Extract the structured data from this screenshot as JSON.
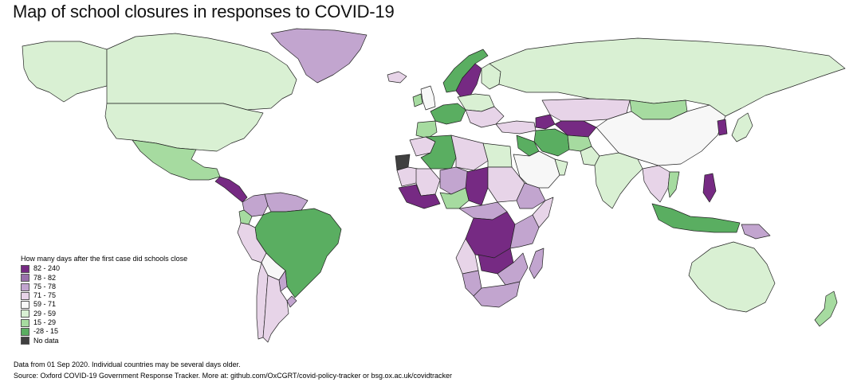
{
  "title": "Map of school closures in responses to COVID-19",
  "legend": {
    "title": "How many days after the first case did schools close",
    "items": [
      {
        "label": "82 - 240",
        "color": "#762a83"
      },
      {
        "label": "78 - 82",
        "color": "#9970ab"
      },
      {
        "label": "75 - 78",
        "color": "#c2a5cf"
      },
      {
        "label": "71 - 75",
        "color": "#e7d4e8"
      },
      {
        "label": "59 - 71",
        "color": "#f7f7f7"
      },
      {
        "label": "29 - 59",
        "color": "#d9f0d3"
      },
      {
        "label": "15 - 29",
        "color": "#a6dba0"
      },
      {
        "label": "-28 - 15",
        "color": "#5aae61"
      },
      {
        "label": "No data",
        "color": "#404040"
      }
    ]
  },
  "footnote": "Data from 01 Sep 2020. Individual countries may be several days older.",
  "source": "Source: Oxford COVID-19 Government Response Tracker. More at: github.com/OxCGRT/covid-policy-tracker or bsg.ox.ac.uk/covidtracker",
  "regions": [
    {
      "name": "Alaska",
      "class": "29 - 59"
    },
    {
      "name": "Canada",
      "class": "29 - 59"
    },
    {
      "name": "Greenland",
      "class": "75 - 78"
    },
    {
      "name": "United States",
      "class": "29 - 59"
    },
    {
      "name": "Mexico",
      "class": "15 - 29"
    },
    {
      "name": "Central America",
      "class": "82 - 240"
    },
    {
      "name": "Colombia",
      "class": "75 - 78"
    },
    {
      "name": "Venezuela",
      "class": "75 - 78"
    },
    {
      "name": "Ecuador",
      "class": "15 - 29"
    },
    {
      "name": "Peru",
      "class": "71 - 75"
    },
    {
      "name": "Bolivia",
      "class": "59 - 71"
    },
    {
      "name": "Brazil",
      "class": "-28 - 15"
    },
    {
      "name": "Paraguay",
      "class": "75 - 78"
    },
    {
      "name": "Uruguay",
      "class": "75 - 78"
    },
    {
      "name": "Chile",
      "class": "71 - 75"
    },
    {
      "name": "Argentina",
      "class": "71 - 75"
    },
    {
      "name": "Iceland",
      "class": "71 - 75"
    },
    {
      "name": "United Kingdom",
      "class": "59 - 71"
    },
    {
      "name": "Ireland",
      "class": "15 - 29"
    },
    {
      "name": "Norway",
      "class": "-28 - 15"
    },
    {
      "name": "Sweden",
      "class": "82 - 240"
    },
    {
      "name": "Finland",
      "class": "29 - 59"
    },
    {
      "name": "Western Europe",
      "class": "-28 - 15"
    },
    {
      "name": "Central Europe",
      "class": "29 - 59"
    },
    {
      "name": "Iberia",
      "class": "15 - 29"
    },
    {
      "name": "Balkans",
      "class": "71 - 75"
    },
    {
      "name": "Russia",
      "class": "29 - 59"
    },
    {
      "name": "Turkey",
      "class": "71 - 75"
    },
    {
      "name": "Caucasus",
      "class": "82 - 240"
    },
    {
      "name": "Kazakhstan",
      "class": "71 - 75"
    },
    {
      "name": "Central Asia",
      "class": "82 - 240"
    },
    {
      "name": "Mongolia",
      "class": "15 - 29"
    },
    {
      "name": "China",
      "class": "59 - 71"
    },
    {
      "name": "Korea",
      "class": "82 - 240"
    },
    {
      "name": "Japan",
      "class": "29 - 59"
    },
    {
      "name": "Iran",
      "class": "-28 - 15"
    },
    {
      "name": "Afghanistan",
      "class": "15 - 29"
    },
    {
      "name": "Pakistan",
      "class": "29 - 59"
    },
    {
      "name": "Saudi Arabia",
      "class": "59 - 71"
    },
    {
      "name": "Middle East",
      "class": "-28 - 15"
    },
    {
      "name": "Oman",
      "class": "29 - 59"
    },
    {
      "name": "India",
      "class": "29 - 59"
    },
    {
      "name": "Southeast Asia",
      "class": "71 - 75"
    },
    {
      "name": "Vietnam",
      "class": "15 - 29"
    },
    {
      "name": "Philippines",
      "class": "82 - 240"
    },
    {
      "name": "Indonesia",
      "class": "-28 - 15"
    },
    {
      "name": "Papua New Guinea",
      "class": "75 - 78"
    },
    {
      "name": "Australia",
      "class": "29 - 59"
    },
    {
      "name": "New Zealand",
      "class": "15 - 29"
    },
    {
      "name": "Morocco",
      "class": "71 - 75"
    },
    {
      "name": "Western Sahara",
      "class": "No data"
    },
    {
      "name": "Algeria",
      "class": "-28 - 15"
    },
    {
      "name": "Libya",
      "class": "71 - 75"
    },
    {
      "name": "Egypt",
      "class": "29 - 59"
    },
    {
      "name": "Mauritania",
      "class": "71 - 75"
    },
    {
      "name": "Mali",
      "class": "71 - 75"
    },
    {
      "name": "Niger",
      "class": "75 - 78"
    },
    {
      "name": "Chad",
      "class": "82 - 240"
    },
    {
      "name": "Sudan",
      "class": "71 - 75"
    },
    {
      "name": "West Africa",
      "class": "82 - 240"
    },
    {
      "name": "Nigeria",
      "class": "15 - 29"
    },
    {
      "name": "Ethiopia",
      "class": "75 - 78"
    },
    {
      "name": "Somalia",
      "class": "71 - 75"
    },
    {
      "name": "Central Africa",
      "class": "75 - 78"
    },
    {
      "name": "DR Congo",
      "class": "82 - 240"
    },
    {
      "name": "East Africa",
      "class": "75 - 78"
    },
    {
      "name": "Angola",
      "class": "71 - 75"
    },
    {
      "name": "Zambia",
      "class": "82 - 240"
    },
    {
      "name": "Southern Africa",
      "class": "75 - 78"
    },
    {
      "name": "Namibia",
      "class": "75 - 78"
    },
    {
      "name": "South Africa",
      "class": "75 - 78"
    },
    {
      "name": "Madagascar",
      "class": "75 - 78"
    }
  ]
}
